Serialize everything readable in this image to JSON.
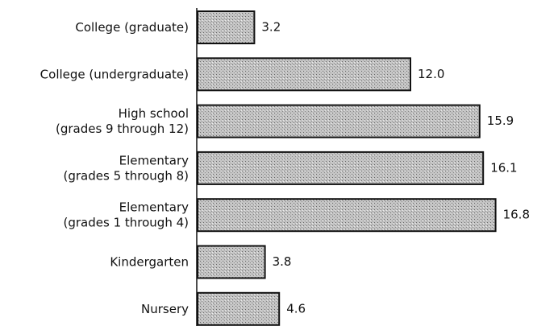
{
  "chart_data": {
    "type": "hbar",
    "categories": [
      "College (graduate)",
      "College (undergraduate)",
      "High school\n(grades 9 through 12)",
      "Elementary\n(grades 5 through 8)",
      "Elementary\n(grades 1 through 4)",
      "Kindergarten",
      "Nursery"
    ],
    "values": [
      3.2,
      12.0,
      15.9,
      16.1,
      16.8,
      3.8,
      4.6
    ],
    "value_labels": [
      "3.2",
      "12.0",
      "15.9",
      "16.1",
      "16.8",
      "3.8",
      "4.6"
    ],
    "color": "#b8b8b8"
  }
}
